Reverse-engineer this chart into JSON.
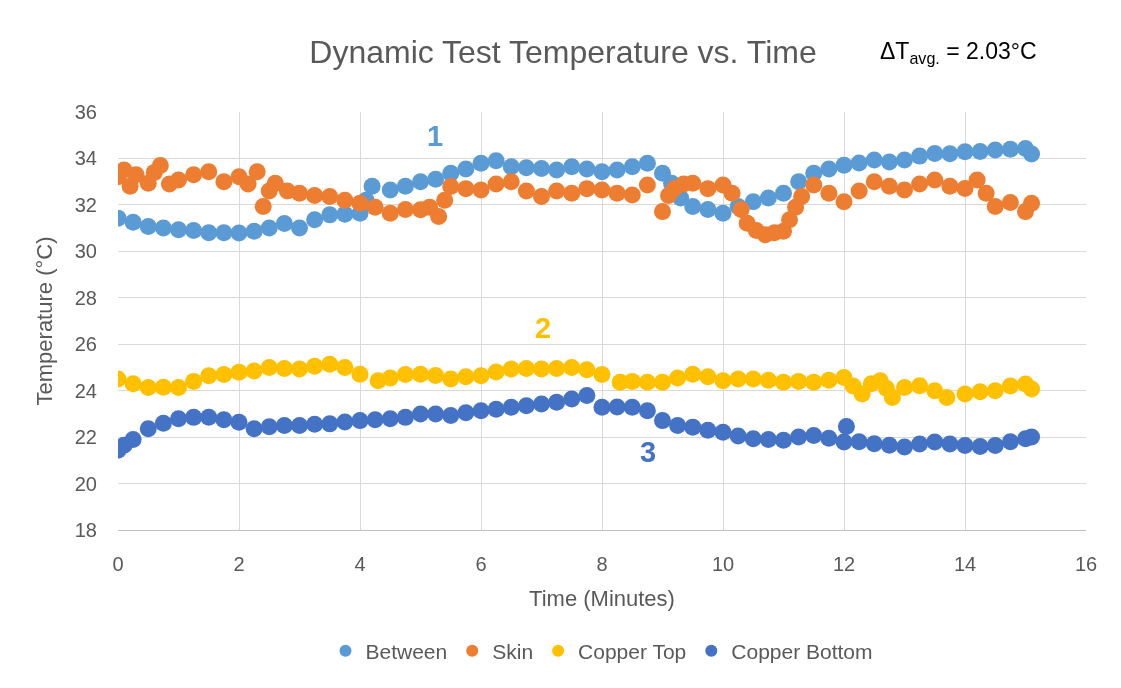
{
  "chart_data": {
    "type": "scatter",
    "title": "Dynamic Test Temperature vs. Time",
    "xlabel": "Time (Minutes)",
    "ylabel": "Temperature (°C)",
    "xlim": [
      0,
      16
    ],
    "xticks": [
      0,
      2,
      4,
      6,
      8,
      10,
      12,
      14,
      16
    ],
    "ylim": [
      18,
      36
    ],
    "yticks": [
      18,
      20,
      22,
      24,
      26,
      28,
      30,
      32,
      34,
      36
    ],
    "grid": true,
    "legend": "bottom",
    "marker": "circle",
    "annotations": [
      "1",
      "2",
      "3",
      "ΔT$_{avg.}$ = 2.03°C"
    ],
    "series": [
      {
        "name": "Between",
        "color": "#5b9bd5",
        "x": [
          0,
          0.25,
          0.5,
          0.75,
          1,
          1.25,
          1.5,
          1.75,
          2,
          2.25,
          2.5,
          2.75,
          3,
          3.25,
          3.5,
          3.75,
          4,
          4.1,
          4.2,
          4.5,
          4.75,
          5,
          5.25,
          5.5,
          5.75,
          6,
          6.25,
          6.5,
          6.75,
          7,
          7.25,
          7.5,
          7.75,
          8,
          8.25,
          8.5,
          8.75,
          9,
          9.15,
          9.3,
          9.5,
          9.75,
          10,
          10.25,
          10.5,
          10.75,
          11,
          11.25,
          11.5,
          11.75,
          12,
          12.25,
          12.5,
          12.75,
          13,
          13.25,
          13.5,
          13.75,
          14,
          14.25,
          14.5,
          14.75,
          15,
          15.1
        ],
        "values": [
          31.43,
          31.25,
          31.07,
          31.0,
          30.93,
          30.9,
          30.8,
          30.8,
          30.79,
          30.86,
          31.0,
          31.2,
          31.0,
          31.36,
          31.57,
          31.6,
          31.64,
          32.2,
          32.8,
          32.64,
          32.8,
          33.0,
          33.1,
          33.36,
          33.55,
          33.79,
          33.9,
          33.64,
          33.6,
          33.57,
          33.5,
          33.64,
          33.55,
          33.43,
          33.5,
          33.64,
          33.79,
          33.36,
          32.93,
          32.3,
          31.93,
          31.8,
          31.64,
          31.93,
          32.14,
          32.3,
          32.5,
          33.0,
          33.36,
          33.55,
          33.71,
          33.8,
          33.93,
          33.85,
          33.93,
          34.1,
          34.21,
          34.2,
          34.29,
          34.3,
          34.36,
          34.4,
          34.43,
          34.19
        ]
      },
      {
        "name": "Skin",
        "color": "#ed7d31",
        "x": [
          0,
          0.1,
          0.2,
          0.3,
          0.5,
          0.6,
          0.7,
          0.85,
          1,
          1.25,
          1.5,
          1.75,
          2,
          2.15,
          2.3,
          2.4,
          2.5,
          2.6,
          2.8,
          3,
          3.25,
          3.5,
          3.75,
          4,
          4.25,
          4.5,
          4.75,
          5,
          5.15,
          5.3,
          5.4,
          5.5,
          5.75,
          6,
          6.25,
          6.5,
          6.75,
          7,
          7.25,
          7.5,
          7.75,
          8,
          8.25,
          8.5,
          8.75,
          9,
          9.1,
          9.2,
          9.35,
          9.5,
          9.75,
          10,
          10.15,
          10.3,
          10.4,
          10.55,
          10.7,
          10.85,
          11,
          11.1,
          11.2,
          11.3,
          11.5,
          11.75,
          12,
          12.25,
          12.5,
          12.75,
          13,
          13.25,
          13.5,
          13.75,
          14,
          14.2,
          14.35,
          14.5,
          14.75,
          15,
          15.1
        ],
        "values": [
          33.21,
          33.5,
          32.8,
          33.3,
          32.93,
          33.4,
          33.7,
          32.9,
          33.07,
          33.3,
          33.43,
          33.0,
          33.21,
          32.9,
          33.43,
          31.93,
          32.6,
          32.93,
          32.6,
          32.5,
          32.4,
          32.36,
          32.2,
          32.07,
          31.9,
          31.64,
          31.8,
          31.79,
          31.9,
          31.5,
          32.2,
          32.79,
          32.7,
          32.64,
          32.9,
          33.0,
          32.6,
          32.36,
          32.6,
          32.5,
          32.7,
          32.64,
          32.5,
          32.43,
          32.86,
          31.71,
          32.4,
          32.71,
          32.9,
          32.93,
          32.7,
          32.86,
          32.5,
          31.8,
          31.21,
          30.9,
          30.71,
          30.8,
          30.86,
          31.36,
          31.9,
          32.36,
          32.86,
          32.5,
          32.14,
          32.6,
          33.0,
          32.8,
          32.64,
          32.9,
          33.07,
          32.8,
          32.71,
          33.07,
          32.5,
          31.93,
          32.1,
          31.71,
          32.07
        ]
      },
      {
        "name": "Copper Top",
        "color": "#ffc000",
        "x": [
          0,
          0.25,
          0.5,
          0.75,
          1,
          1.25,
          1.5,
          1.75,
          2,
          2.25,
          2.5,
          2.75,
          3,
          3.25,
          3.5,
          3.75,
          4,
          4.3,
          4.5,
          4.75,
          5,
          5.25,
          5.5,
          5.75,
          6,
          6.25,
          6.5,
          6.75,
          7,
          7.25,
          7.5,
          7.75,
          8,
          8.3,
          8.5,
          8.75,
          9,
          9.25,
          9.5,
          9.75,
          10,
          10.25,
          10.5,
          10.75,
          11,
          11.25,
          11.5,
          11.75,
          12,
          12.15,
          12.3,
          12.45,
          12.6,
          12.7,
          12.8,
          13,
          13.25,
          13.5,
          13.7,
          14,
          14.25,
          14.5,
          14.75,
          15,
          15.1
        ],
        "values": [
          24.5,
          24.3,
          24.14,
          24.15,
          24.14,
          24.4,
          24.64,
          24.7,
          24.79,
          24.85,
          25.0,
          24.95,
          24.93,
          25.05,
          25.14,
          25.0,
          24.71,
          24.43,
          24.55,
          24.7,
          24.71,
          24.65,
          24.5,
          24.6,
          24.64,
          24.8,
          24.93,
          24.95,
          24.93,
          24.95,
          25.0,
          24.9,
          24.7,
          24.36,
          24.4,
          24.36,
          24.36,
          24.55,
          24.71,
          24.6,
          24.43,
          24.5,
          24.5,
          24.45,
          24.36,
          24.4,
          24.36,
          24.45,
          24.57,
          24.2,
          23.86,
          24.3,
          24.43,
          24.1,
          23.71,
          24.14,
          24.21,
          24.0,
          23.71,
          23.86,
          23.95,
          24.0,
          24.2,
          24.29,
          24.07
        ]
      },
      {
        "name": "Copper Bottom",
        "color": "#4472c4",
        "x": [
          0,
          0.1,
          0.25,
          0.5,
          0.75,
          1,
          1.25,
          1.5,
          1.75,
          2,
          2.25,
          2.5,
          2.75,
          3,
          3.25,
          3.5,
          3.75,
          4,
          4.25,
          4.5,
          4.75,
          5,
          5.25,
          5.5,
          5.75,
          6,
          6.25,
          6.5,
          6.75,
          7,
          7.25,
          7.5,
          7.75,
          8,
          8.25,
          8.5,
          8.75,
          9,
          9.25,
          9.5,
          9.75,
          10,
          10.25,
          10.5,
          10.75,
          11,
          11.25,
          11.5,
          11.75,
          12,
          12.04,
          12.25,
          12.5,
          12.75,
          13,
          13.25,
          13.5,
          13.75,
          14,
          14.25,
          14.5,
          14.75,
          15,
          15.1
        ],
        "values": [
          21.43,
          21.65,
          21.9,
          22.36,
          22.6,
          22.79,
          22.85,
          22.86,
          22.75,
          22.64,
          22.36,
          22.45,
          22.5,
          22.5,
          22.55,
          22.57,
          22.65,
          22.71,
          22.75,
          22.79,
          22.85,
          23.0,
          23.0,
          22.93,
          23.05,
          23.14,
          23.2,
          23.29,
          23.35,
          23.43,
          23.5,
          23.64,
          23.79,
          23.29,
          23.3,
          23.29,
          23.14,
          22.71,
          22.5,
          22.43,
          22.3,
          22.21,
          22.05,
          21.93,
          21.9,
          21.86,
          22.0,
          22.07,
          21.95,
          21.79,
          22.46,
          21.8,
          21.71,
          21.65,
          21.57,
          21.7,
          21.79,
          21.7,
          21.64,
          21.6,
          21.64,
          21.8,
          21.93,
          22.0
        ]
      }
    ]
  }
}
